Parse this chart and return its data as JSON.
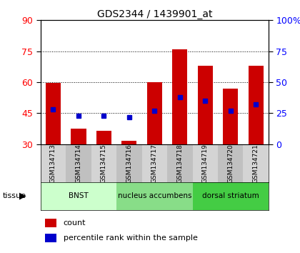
{
  "title": "GDS2344 / 1439901_at",
  "samples": [
    "GSM134713",
    "GSM134714",
    "GSM134715",
    "GSM134716",
    "GSM134717",
    "GSM134718",
    "GSM134719",
    "GSM134720",
    "GSM134721"
  ],
  "count_values": [
    59.5,
    37.5,
    36.5,
    31.5,
    60.0,
    76.0,
    68.0,
    57.0,
    68.0
  ],
  "percentile_values_pct": [
    28,
    23,
    23,
    22,
    27,
    38,
    35,
    27,
    32
  ],
  "baseline": 30,
  "ylim_left": [
    30,
    90
  ],
  "ylim_right": [
    0,
    100
  ],
  "yticks_left": [
    30,
    45,
    60,
    75,
    90
  ],
  "yticks_right": [
    0,
    25,
    50,
    75,
    100
  ],
  "ytick_labels_right": [
    "0",
    "25",
    "50",
    "75",
    "100%"
  ],
  "bar_color": "#cc0000",
  "dot_color": "#0000cc",
  "tissue_groups": [
    {
      "label": "BNST",
      "start": 0,
      "end": 3
    },
    {
      "label": "nucleus accumbens",
      "start": 3,
      "end": 6
    },
    {
      "label": "dorsal striatum",
      "start": 6,
      "end": 9
    }
  ],
  "tissue_colors": [
    "#ccffcc",
    "#88dd88",
    "#44cc44"
  ],
  "legend_count_label": "count",
  "legend_pct_label": "percentile rank within the sample",
  "tissue_label": "tissue",
  "background_color": "#ffffff"
}
